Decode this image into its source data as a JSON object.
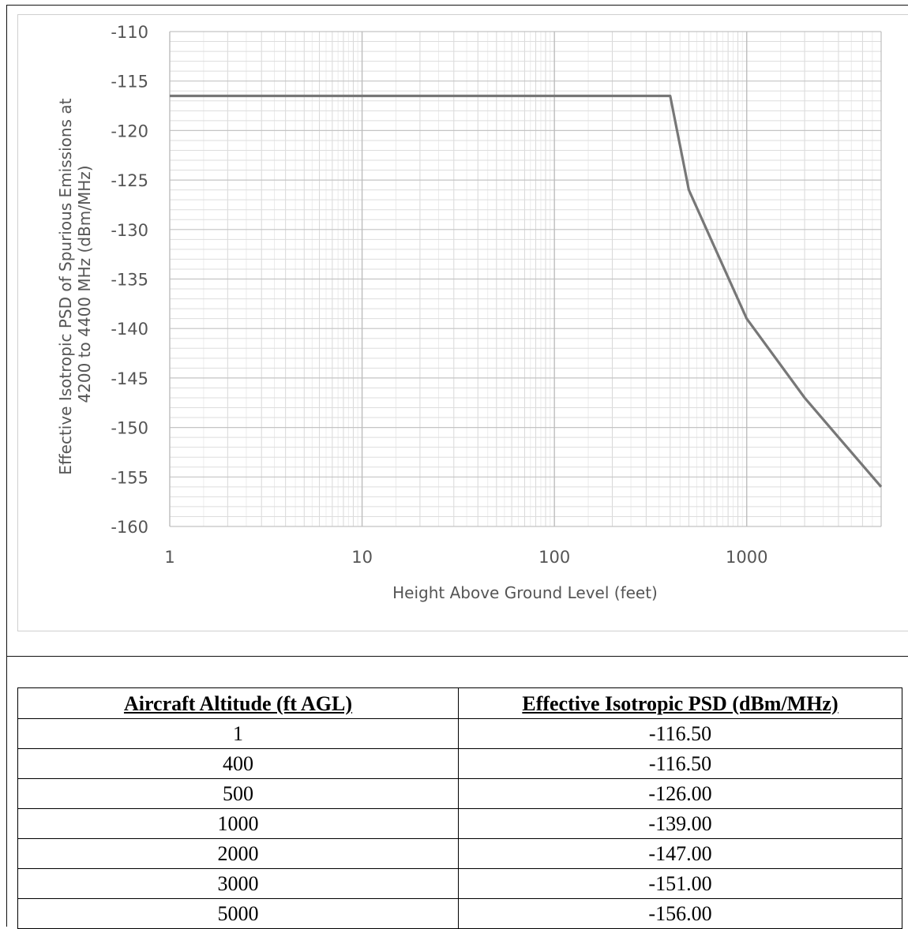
{
  "chart_data": {
    "type": "line",
    "title": "",
    "xlabel": "Height Above Ground Level (feet)",
    "ylabel_lines": [
      "Effective Isotropic PSD of Spurious Emissions at",
      "4200 to 4400 MHz (dBm/MHz)"
    ],
    "x_scale": "log",
    "xlim": [
      1,
      5000
    ],
    "ylim": [
      -160,
      -110
    ],
    "x_ticks": [
      1,
      10,
      100,
      1000
    ],
    "x_tick_labels": [
      "1",
      "10",
      "100",
      "1000"
    ],
    "y_ticks": [
      -110,
      -115,
      -120,
      -125,
      -130,
      -135,
      -140,
      -145,
      -150,
      -155,
      -160
    ],
    "y_tick_labels": [
      "-110",
      "-115",
      "-120",
      "-125",
      "-130",
      "-135",
      "-140",
      "-145",
      "-150",
      "-155",
      "-160"
    ],
    "grid": true,
    "line_color": "#777777",
    "series": [
      {
        "x": [
          1,
          400,
          500,
          1000,
          2000,
          3000,
          5000
        ],
        "y": [
          -116.5,
          -116.5,
          -126.0,
          -139.0,
          -147.0,
          -151.0,
          -156.0
        ]
      }
    ]
  },
  "table": {
    "headers": [
      "Aircraft Altitude (ft AGL)",
      "Effective Isotropic PSD (dBm/MHz)"
    ],
    "rows": [
      [
        "1",
        "-116.50"
      ],
      [
        "400",
        "-116.50"
      ],
      [
        "500",
        "-126.00"
      ],
      [
        "1000",
        "-139.00"
      ],
      [
        "2000",
        "-147.00"
      ],
      [
        "3000",
        "-151.00"
      ],
      [
        "5000",
        "-156.00"
      ]
    ]
  }
}
